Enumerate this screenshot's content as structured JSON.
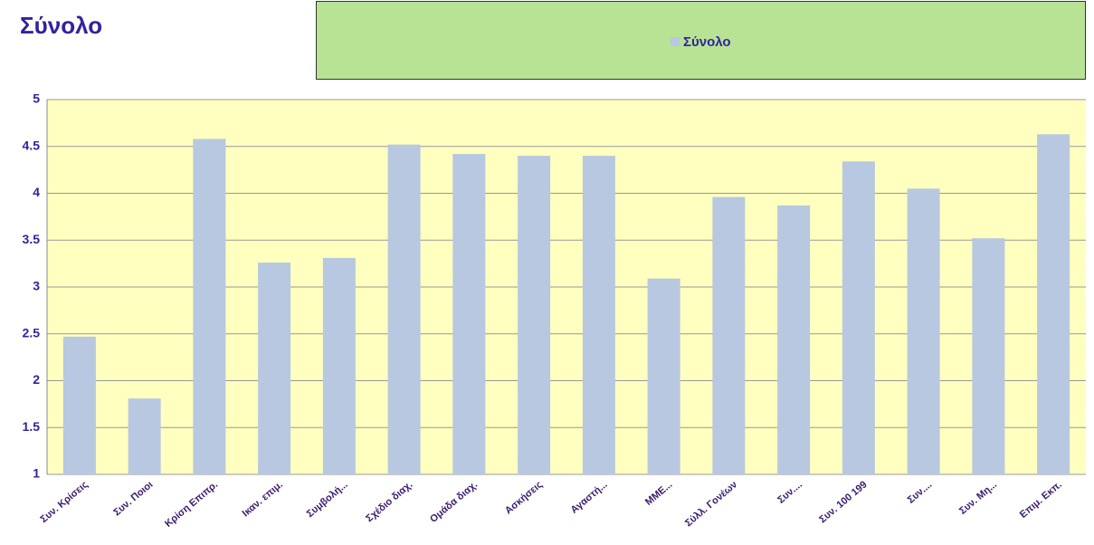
{
  "chart_data": {
    "type": "bar",
    "title": "Σύνολο",
    "categories": [
      "Συν. Κρίσεις",
      "Συν. Ποιοι",
      "Κρίση Επιπρ.",
      "Ικαν. επιμ.",
      "Συμβολή...",
      "Σχέδιο διαχ.",
      "Ομάδα διαχ.",
      "Ασκήσεις",
      "Αγαστή...",
      "ΜΜΕ...",
      "Σύλλ. Γονέων",
      "Συν....",
      "Συν. 100 199",
      "Συν....",
      "Συν. Μη...",
      "Επιμ. Εκπ."
    ],
    "series": [
      {
        "name": "Σύνολο",
        "color": "#b8c8e0",
        "values": [
          2.47,
          1.81,
          4.58,
          3.26,
          3.31,
          4.52,
          4.42,
          4.4,
          4.4,
          3.09,
          3.96,
          3.87,
          4.34,
          4.05,
          3.52,
          4.63
        ]
      }
    ],
    "ylim": [
      1,
      5
    ],
    "yticks": [
      1,
      1.5,
      2,
      2.5,
      3,
      3.5,
      4,
      4.5,
      5
    ],
    "grid": true
  }
}
